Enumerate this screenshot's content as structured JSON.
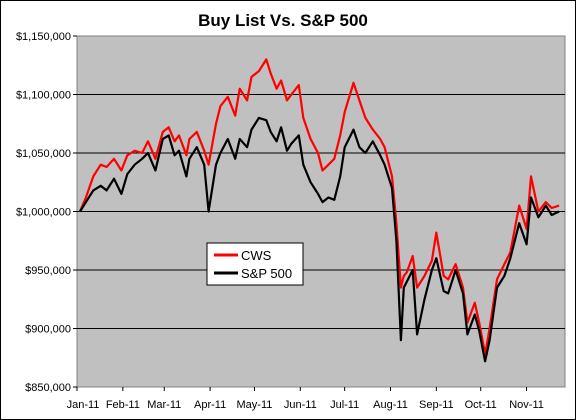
{
  "chart_data": {
    "type": "line",
    "title": "Buy List Vs. S&P 500",
    "xlabel": "",
    "ylabel": "",
    "ylim": [
      850000,
      1150000
    ],
    "yticks": [
      "$850,000",
      "$900,000",
      "$950,000",
      "$1,000,000",
      "$1,050,000",
      "$1,100,000",
      "$1,150,000"
    ],
    "ytick_values": [
      850000,
      900000,
      950000,
      1000000,
      1050000,
      1100000,
      1150000
    ],
    "x_months": [
      "Jan-11",
      "Feb-11",
      "Mar-11",
      "Apr-11",
      "May-11",
      "Jun-11",
      "Jul-11",
      "Aug-11",
      "Sep-11",
      "Oct-11",
      "Nov-11"
    ],
    "grid": "horizontal",
    "background": "#c0c0c0",
    "legend_position": "center-left",
    "series": [
      {
        "name": "CWS",
        "color": "#ff0000",
        "points": [
          [
            "2011-01-03",
            1000000
          ],
          [
            "2011-01-07",
            1012000
          ],
          [
            "2011-01-12",
            1030000
          ],
          [
            "2011-01-17",
            1040000
          ],
          [
            "2011-01-21",
            1038000
          ],
          [
            "2011-01-26",
            1045000
          ],
          [
            "2011-01-31",
            1035000
          ],
          [
            "2011-02-04",
            1048000
          ],
          [
            "2011-02-09",
            1052000
          ],
          [
            "2011-02-14",
            1050000
          ],
          [
            "2011-02-18",
            1060000
          ],
          [
            "2011-02-23",
            1045000
          ],
          [
            "2011-02-28",
            1068000
          ],
          [
            "2011-03-04",
            1072000
          ],
          [
            "2011-03-08",
            1060000
          ],
          [
            "2011-03-11",
            1065000
          ],
          [
            "2011-03-16",
            1048000
          ],
          [
            "2011-03-18",
            1062000
          ],
          [
            "2011-03-23",
            1068000
          ],
          [
            "2011-03-28",
            1052000
          ],
          [
            "2011-03-31",
            1040000
          ],
          [
            "2011-04-05",
            1075000
          ],
          [
            "2011-04-08",
            1090000
          ],
          [
            "2011-04-13",
            1098000
          ],
          [
            "2011-04-18",
            1082000
          ],
          [
            "2011-04-21",
            1105000
          ],
          [
            "2011-04-26",
            1095000
          ],
          [
            "2011-04-29",
            1115000
          ],
          [
            "2011-05-04",
            1120000
          ],
          [
            "2011-05-09",
            1130000
          ],
          [
            "2011-05-12",
            1118000
          ],
          [
            "2011-05-16",
            1105000
          ],
          [
            "2011-05-19",
            1112000
          ],
          [
            "2011-05-23",
            1095000
          ],
          [
            "2011-05-26",
            1100000
          ],
          [
            "2011-05-31",
            1108000
          ],
          [
            "2011-06-03",
            1080000
          ],
          [
            "2011-06-08",
            1062000
          ],
          [
            "2011-06-13",
            1050000
          ],
          [
            "2011-06-16",
            1035000
          ],
          [
            "2011-06-20",
            1040000
          ],
          [
            "2011-06-24",
            1045000
          ],
          [
            "2011-06-28",
            1065000
          ],
          [
            "2011-07-01",
            1085000
          ],
          [
            "2011-07-07",
            1110000
          ],
          [
            "2011-07-11",
            1095000
          ],
          [
            "2011-07-15",
            1080000
          ],
          [
            "2011-07-20",
            1070000
          ],
          [
            "2011-07-25",
            1062000
          ],
          [
            "2011-07-28",
            1055000
          ],
          [
            "2011-08-02",
            1030000
          ],
          [
            "2011-08-05",
            990000
          ],
          [
            "2011-08-08",
            935000
          ],
          [
            "2011-08-10",
            945000
          ],
          [
            "2011-08-12",
            948000
          ],
          [
            "2011-08-16",
            962000
          ],
          [
            "2011-08-19",
            935000
          ],
          [
            "2011-08-24",
            945000
          ],
          [
            "2011-08-29",
            958000
          ],
          [
            "2011-09-01",
            982000
          ],
          [
            "2011-09-06",
            945000
          ],
          [
            "2011-09-09",
            942000
          ],
          [
            "2011-09-14",
            955000
          ],
          [
            "2011-09-19",
            935000
          ],
          [
            "2011-09-22",
            905000
          ],
          [
            "2011-09-27",
            922000
          ],
          [
            "2011-09-30",
            905000
          ],
          [
            "2011-10-04",
            878000
          ],
          [
            "2011-10-07",
            900000
          ],
          [
            "2011-10-12",
            942000
          ],
          [
            "2011-10-17",
            955000
          ],
          [
            "2011-10-21",
            965000
          ],
          [
            "2011-10-27",
            1005000
          ],
          [
            "2011-11-01",
            985000
          ],
          [
            "2011-11-04",
            1030000
          ],
          [
            "2011-11-09",
            1000000
          ],
          [
            "2011-11-14",
            1008000
          ],
          [
            "2011-11-18",
            1003000
          ],
          [
            "2011-11-23",
            1005000
          ]
        ]
      },
      {
        "name": "S&P 500",
        "color": "#000000",
        "points": [
          [
            "2011-01-03",
            1000000
          ],
          [
            "2011-01-07",
            1008000
          ],
          [
            "2011-01-12",
            1018000
          ],
          [
            "2011-01-17",
            1022000
          ],
          [
            "2011-01-21",
            1018000
          ],
          [
            "2011-01-26",
            1028000
          ],
          [
            "2011-01-31",
            1015000
          ],
          [
            "2011-02-04",
            1032000
          ],
          [
            "2011-02-09",
            1040000
          ],
          [
            "2011-02-14",
            1045000
          ],
          [
            "2011-02-18",
            1050000
          ],
          [
            "2011-02-23",
            1035000
          ],
          [
            "2011-02-28",
            1062000
          ],
          [
            "2011-03-04",
            1065000
          ],
          [
            "2011-03-08",
            1048000
          ],
          [
            "2011-03-11",
            1052000
          ],
          [
            "2011-03-16",
            1030000
          ],
          [
            "2011-03-18",
            1045000
          ],
          [
            "2011-03-23",
            1055000
          ],
          [
            "2011-03-28",
            1040000
          ],
          [
            "2011-03-31",
            1000000
          ],
          [
            "2011-04-05",
            1040000
          ],
          [
            "2011-04-08",
            1050000
          ],
          [
            "2011-04-13",
            1062000
          ],
          [
            "2011-04-18",
            1045000
          ],
          [
            "2011-04-21",
            1062000
          ],
          [
            "2011-04-26",
            1055000
          ],
          [
            "2011-04-29",
            1070000
          ],
          [
            "2011-05-04",
            1080000
          ],
          [
            "2011-05-09",
            1078000
          ],
          [
            "2011-05-12",
            1068000
          ],
          [
            "2011-05-16",
            1060000
          ],
          [
            "2011-05-19",
            1072000
          ],
          [
            "2011-05-23",
            1052000
          ],
          [
            "2011-05-26",
            1058000
          ],
          [
            "2011-05-31",
            1065000
          ],
          [
            "2011-06-03",
            1040000
          ],
          [
            "2011-06-08",
            1025000
          ],
          [
            "2011-06-13",
            1015000
          ],
          [
            "2011-06-16",
            1008000
          ],
          [
            "2011-06-20",
            1012000
          ],
          [
            "2011-06-24",
            1010000
          ],
          [
            "2011-06-28",
            1030000
          ],
          [
            "2011-07-01",
            1055000
          ],
          [
            "2011-07-07",
            1070000
          ],
          [
            "2011-07-11",
            1055000
          ],
          [
            "2011-07-15",
            1050000
          ],
          [
            "2011-07-20",
            1060000
          ],
          [
            "2011-07-25",
            1048000
          ],
          [
            "2011-07-28",
            1040000
          ],
          [
            "2011-08-02",
            1020000
          ],
          [
            "2011-08-05",
            975000
          ],
          [
            "2011-08-08",
            890000
          ],
          [
            "2011-08-10",
            935000
          ],
          [
            "2011-08-12",
            940000
          ],
          [
            "2011-08-16",
            950000
          ],
          [
            "2011-08-19",
            895000
          ],
          [
            "2011-08-24",
            925000
          ],
          [
            "2011-08-29",
            950000
          ],
          [
            "2011-09-01",
            960000
          ],
          [
            "2011-09-06",
            932000
          ],
          [
            "2011-09-09",
            930000
          ],
          [
            "2011-09-14",
            950000
          ],
          [
            "2011-09-19",
            930000
          ],
          [
            "2011-09-22",
            895000
          ],
          [
            "2011-09-27",
            912000
          ],
          [
            "2011-09-30",
            898000
          ],
          [
            "2011-10-04",
            872000
          ],
          [
            "2011-10-07",
            890000
          ],
          [
            "2011-10-12",
            935000
          ],
          [
            "2011-10-17",
            945000
          ],
          [
            "2011-10-21",
            960000
          ],
          [
            "2011-10-27",
            990000
          ],
          [
            "2011-11-01",
            972000
          ],
          [
            "2011-11-04",
            1012000
          ],
          [
            "2011-11-09",
            995000
          ],
          [
            "2011-11-14",
            1005000
          ],
          [
            "2011-11-18",
            997000
          ],
          [
            "2011-11-23",
            1000000
          ]
        ]
      }
    ]
  }
}
